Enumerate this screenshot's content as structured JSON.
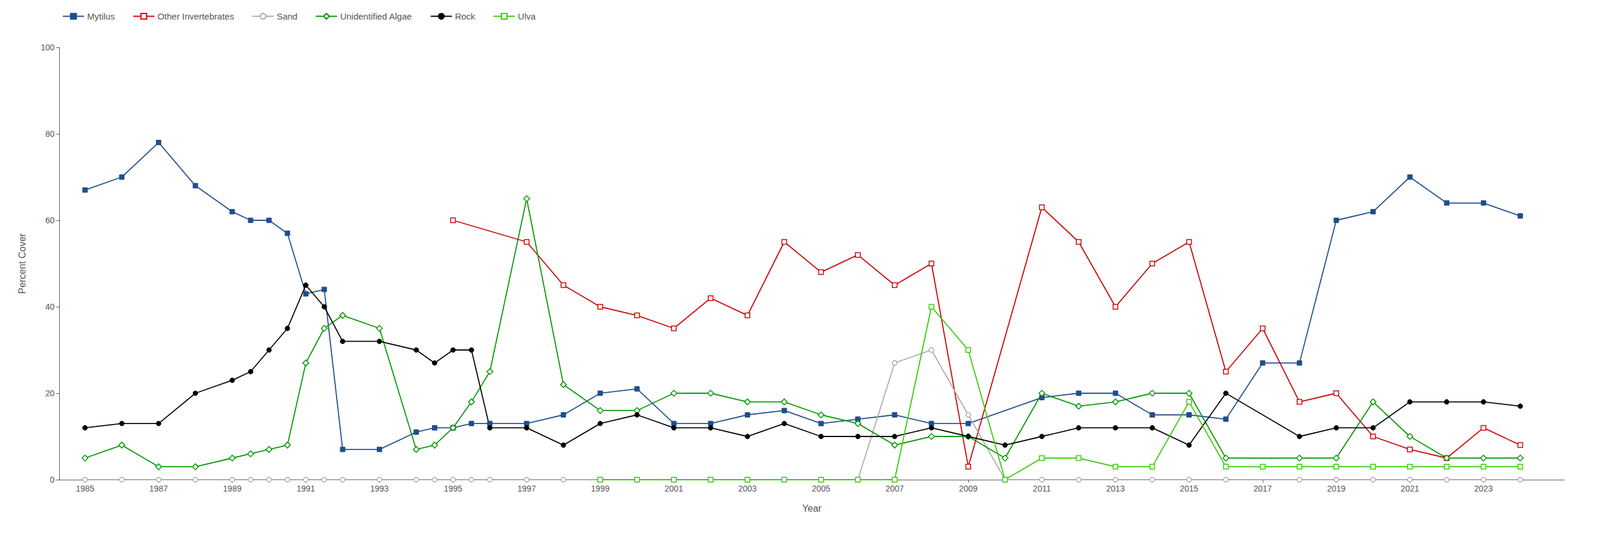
{
  "chart_data": {
    "type": "line",
    "xlabel": "Year",
    "ylabel": "Percent Cover",
    "xlim": [
      1984.3,
      2025.2
    ],
    "xticks": [
      1985,
      1987,
      1989,
      1991,
      1993,
      1995,
      1997,
      1999,
      2001,
      2003,
      2005,
      2007,
      2009,
      2011,
      2013,
      2015,
      2017,
      2019,
      2021,
      2023
    ],
    "ylim": [
      0,
      100
    ],
    "yticks": [
      0,
      20,
      40,
      60,
      80,
      100
    ],
    "grid": false,
    "legend": "top",
    "series": [
      {
        "name": "Mytilus",
        "color": "#1F4E8C",
        "marker": "square",
        "x": [
          1985,
          1986,
          1987,
          1988,
          1989,
          1989.5,
          1990,
          1990.5,
          1991,
          1991.5,
          1992,
          1993,
          1994,
          1994.5,
          1995,
          1995.5,
          1996,
          1997,
          1998,
          1999,
          2000,
          2001,
          2002,
          2003,
          2004,
          2005,
          2006,
          2007,
          2008,
          2009,
          2011,
          2012,
          2013,
          2014,
          2015,
          2016,
          2017,
          2018,
          2019,
          2020,
          2021,
          2022,
          2023,
          2024
        ],
        "values": [
          67,
          70,
          78,
          68,
          62,
          60,
          60,
          57,
          43,
          44,
          7,
          7,
          11,
          12,
          12,
          13,
          13,
          13,
          15,
          20,
          21,
          13,
          13,
          15,
          16,
          13,
          14,
          15,
          13,
          13,
          19,
          20,
          20,
          15,
          15,
          14,
          27,
          27,
          60,
          62,
          70,
          64,
          64,
          61
        ]
      },
      {
        "name": "Other Invertebrates",
        "color": "#CC0000",
        "marker": "open-square",
        "x": [
          1995,
          1997,
          1998,
          1999,
          2000,
          2001,
          2002,
          2003,
          2004,
          2005,
          2006,
          2007,
          2008,
          2009,
          2011,
          2012,
          2013,
          2014,
          2015,
          2016,
          2017,
          2018,
          2019,
          2020,
          2021,
          2022,
          2023,
          2024
        ],
        "values": [
          60,
          55,
          45,
          40,
          38,
          35,
          42,
          38,
          55,
          48,
          52,
          45,
          50,
          3,
          63,
          55,
          40,
          50,
          55,
          25,
          35,
          18,
          20,
          10,
          7,
          5,
          12,
          8
        ]
      },
      {
        "name": "Sand",
        "color": "#AAAAAA",
        "marker": "open-circle",
        "x": [
          1985,
          1986,
          1987,
          1988,
          1989,
          1989.5,
          1990,
          1990.5,
          1991,
          1991.5,
          1992,
          1993,
          1994,
          1994.5,
          1995,
          1995.5,
          1996,
          1997,
          1998,
          1999,
          2000,
          2001,
          2002,
          2003,
          2004,
          2005,
          2006,
          2007,
          2008,
          2009,
          2010,
          2011,
          2012,
          2013,
          2014,
          2015,
          2016,
          2018,
          2019,
          2020,
          2021,
          2022,
          2023,
          2024
        ],
        "values": [
          0,
          0,
          0,
          0,
          0,
          0,
          0,
          0,
          0,
          0,
          0,
          0,
          0,
          0,
          0,
          0,
          0,
          0,
          0,
          0,
          0,
          0,
          0,
          0,
          0,
          0,
          0,
          27,
          30,
          15,
          0,
          0,
          0,
          0,
          0,
          0,
          0,
          0,
          0,
          0,
          0,
          0,
          0,
          0
        ]
      },
      {
        "name": "Unidentified Algae",
        "color": "#009900",
        "marker": "open-diamond",
        "x": [
          1985,
          1986,
          1987,
          1988,
          1989,
          1989.5,
          1990,
          1990.5,
          1991,
          1991.5,
          1992,
          1993,
          1994,
          1994.5,
          1995,
          1995.5,
          1996,
          1997,
          1998,
          1999,
          2000,
          2001,
          2002,
          2003,
          2004,
          2005,
          2006,
          2007,
          2008,
          2009,
          2010,
          2011,
          2012,
          2013,
          2014,
          2015,
          2016,
          2018,
          2019,
          2020,
          2021,
          2022,
          2023,
          2024
        ],
        "values": [
          5,
          8,
          3,
          3,
          5,
          6,
          7,
          8,
          27,
          35,
          38,
          35,
          7,
          8,
          12,
          18,
          25,
          65,
          22,
          16,
          16,
          20,
          20,
          18,
          18,
          15,
          13,
          8,
          10,
          10,
          5,
          20,
          17,
          18,
          20,
          20,
          5,
          5,
          5,
          18,
          10,
          5,
          5,
          5
        ]
      },
      {
        "name": "Rock",
        "color": "#000000",
        "marker": "circle",
        "x": [
          1985,
          1986,
          1987,
          1988,
          1989,
          1989.5,
          1990,
          1990.5,
          1991,
          1991.5,
          1992,
          1993,
          1994,
          1994.5,
          1995,
          1995.5,
          1996,
          1997,
          1998,
          1999,
          2000,
          2001,
          2002,
          2003,
          2004,
          2005,
          2006,
          2007,
          2008,
          2009,
          2010,
          2011,
          2012,
          2013,
          2014,
          2015,
          2016,
          2018,
          2019,
          2020,
          2021,
          2022,
          2023,
          2024
        ],
        "values": [
          12,
          13,
          13,
          20,
          23,
          25,
          30,
          35,
          45,
          40,
          32,
          32,
          30,
          27,
          30,
          30,
          12,
          12,
          8,
          13,
          15,
          12,
          12,
          10,
          13,
          10,
          10,
          10,
          12,
          10,
          8,
          10,
          12,
          12,
          12,
          8,
          20,
          10,
          12,
          12,
          18,
          18,
          18,
          17
        ]
      },
      {
        "name": "Ulva",
        "color": "#33CC00",
        "marker": "open-square",
        "x": [
          1999,
          2000,
          2001,
          2002,
          2003,
          2004,
          2005,
          2006,
          2007,
          2008,
          2009,
          2010,
          2011,
          2012,
          2013,
          2014,
          2015,
          2016,
          2017,
          2018,
          2019,
          2020,
          2021,
          2022,
          2023,
          2024
        ],
        "values": [
          0,
          0,
          0,
          0,
          0,
          0,
          0,
          0,
          0,
          40,
          30,
          0,
          5,
          5,
          3,
          3,
          18,
          3,
          3,
          3,
          3,
          3,
          3,
          3,
          3,
          3
        ]
      }
    ]
  }
}
